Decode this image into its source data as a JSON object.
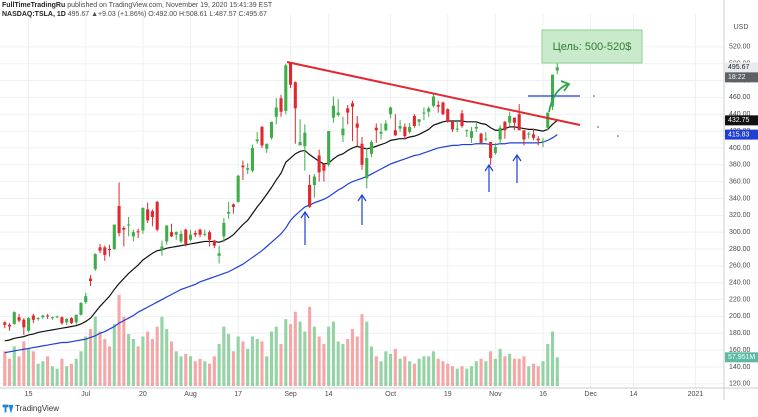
{
  "chart_data": {
    "type": "candlestick",
    "author": "FullTimeTradingRu",
    "published": "published on TradingView.com, November 19, 2020 15:41:39 EST",
    "symbol": "NASDAQ:TSLA, 1D",
    "quote": "495.67 ▲+9.03 (+1.86%) O:492.00 H:508.61 L:487.57 C:495.67",
    "annotation": "Цель: 500-520$",
    "currency": "USD",
    "countdown": "18:22",
    "footer": "TradingView",
    "up_color": "#3fae4a",
    "down_color": "#e0282e",
    "volume_up_color": "#93d3a4",
    "volume_down_color": "#f5a6a6",
    "grid": true,
    "xlim": [
      -1,
      151
    ],
    "xticks": [
      {
        "value": 5,
        "label": "15"
      },
      {
        "value": 17,
        "label": "Jul"
      },
      {
        "value": 29,
        "label": "20"
      },
      {
        "value": 39,
        "label": "Aug"
      },
      {
        "value": 49,
        "label": "17"
      },
      {
        "value": 60,
        "label": "Sep"
      },
      {
        "value": 68,
        "label": "14"
      },
      {
        "value": 81,
        "label": "Oct"
      },
      {
        "value": 93,
        "label": "19"
      },
      {
        "value": 103,
        "label": "Nov"
      },
      {
        "value": 113,
        "label": "16"
      },
      {
        "value": 123,
        "label": "Dec"
      },
      {
        "value": 132,
        "label": "14"
      },
      {
        "value": 145,
        "label": "2021"
      }
    ],
    "ylim": [
      115,
      559
    ],
    "yticks": [
      {
        "value": 120,
        "label": "120.00"
      },
      {
        "value": 140,
        "label": "140.00"
      },
      {
        "value": 160,
        "label": "160.00"
      },
      {
        "value": 180,
        "label": "180.00"
      },
      {
        "value": 200,
        "label": "200.00"
      },
      {
        "value": 220,
        "label": "220.00"
      },
      {
        "value": 240,
        "label": "240.00"
      },
      {
        "value": 260,
        "label": "260.00"
      },
      {
        "value": 280,
        "label": "280.00"
      },
      {
        "value": 300,
        "label": "300.00"
      },
      {
        "value": 320,
        "label": "320.00"
      },
      {
        "value": 340,
        "label": "340.00"
      },
      {
        "value": 360,
        "label": "360.00"
      },
      {
        "value": 380,
        "label": "380.00"
      },
      {
        "value": 400,
        "label": "400.00"
      },
      {
        "value": 420,
        "label": "420.00"
      },
      {
        "value": 440,
        "label": "440.00"
      },
      {
        "value": 460,
        "label": "460.00"
      },
      {
        "value": 480,
        "label": "480.00"
      },
      {
        "value": 500,
        "label": "500.00"
      },
      {
        "value": 520,
        "label": "520.00"
      }
    ],
    "ohlc": [
      [
        193,
        194,
        186,
        190
      ],
      [
        190,
        192,
        183,
        188
      ],
      [
        191,
        206,
        190,
        205
      ],
      [
        199,
        203,
        193,
        195
      ],
      [
        196,
        198,
        178,
        187
      ],
      [
        183,
        199,
        181,
        198
      ],
      [
        201,
        203,
        192,
        196
      ],
      [
        197,
        199,
        195,
        198
      ],
      [
        199,
        202,
        197,
        201
      ],
      [
        201,
        203,
        197,
        200
      ],
      [
        199,
        200,
        196,
        199
      ],
      [
        199,
        201,
        198,
        200
      ],
      [
        199,
        200,
        190,
        192
      ],
      [
        193,
        198,
        190,
        197
      ],
      [
        198,
        199,
        191,
        192
      ],
      [
        193,
        202,
        190,
        202
      ],
      [
        202,
        217,
        201,
        216
      ],
      [
        217,
        228,
        215,
        224
      ],
      [
        245,
        249,
        236,
        242
      ],
      [
        256,
        275,
        254,
        274
      ],
      [
        282,
        286,
        275,
        278
      ],
      [
        282,
        284,
        266,
        273
      ],
      [
        280,
        285,
        271,
        279
      ],
      [
        280,
        309,
        279,
        309
      ],
      [
        331,
        359,
        295,
        299
      ],
      [
        305,
        307,
        283,
        303
      ],
      [
        309,
        318,
        295,
        309
      ],
      [
        295,
        303,
        289,
        300
      ],
      [
        301,
        304,
        293,
        300
      ],
      [
        302,
        329,
        298,
        329
      ],
      [
        327,
        335,
        311,
        314
      ],
      [
        325,
        327,
        307,
        318
      ],
      [
        336,
        337,
        301,
        303
      ],
      [
        279,
        290,
        272,
        283
      ],
      [
        289,
        308,
        285,
        308
      ],
      [
        300,
        310,
        294,
        295
      ],
      [
        297,
        301,
        291,
        300
      ],
      [
        289,
        302,
        287,
        298
      ],
      [
        303,
        304,
        283,
        286
      ],
      [
        291,
        303,
        289,
        297
      ],
      [
        299,
        302,
        294,
        297
      ],
      [
        303,
        304,
        294,
        297
      ],
      [
        298,
        303,
        295,
        298
      ],
      [
        300,
        302,
        283,
        291
      ],
      [
        290,
        291,
        281,
        284
      ],
      [
        272,
        284,
        263,
        275
      ],
      [
        295,
        317,
        288,
        311
      ],
      [
        322,
        336,
        316,
        324
      ],
      [
        333,
        334,
        322,
        330
      ],
      [
        336,
        368,
        335,
        367
      ],
      [
        379,
        385,
        362,
        377
      ],
      [
        374,
        382,
        369,
        376
      ],
      [
        373,
        404,
        371,
        400
      ],
      [
        408,
        419,
        405,
        410
      ],
      [
        425,
        426,
        400,
        403
      ],
      [
        399,
        405,
        394,
        405
      ],
      [
        412,
        431,
        410,
        431
      ],
      [
        437,
        459,
        428,
        448
      ],
      [
        459,
        463,
        437,
        443
      ],
      [
        444,
        500,
        440,
        498
      ],
      [
        502,
        502,
        471,
        475
      ],
      [
        478,
        479,
        405,
        447
      ],
      [
        403,
        434,
        403,
        407
      ],
      [
        402,
        428,
        373,
        418
      ],
      [
        356,
        368,
        329,
        330
      ],
      [
        356,
        369,
        341,
        366
      ],
      [
        391,
        398,
        360,
        371
      ],
      [
        381,
        382,
        360,
        373
      ],
      [
        380,
        420,
        378,
        420
      ],
      [
        436,
        461,
        430,
        450
      ],
      [
        439,
        458,
        437,
        442
      ],
      [
        415,
        437,
        407,
        423
      ],
      [
        447,
        451,
        428,
        442
      ],
      [
        453,
        456,
        408,
        449
      ],
      [
        429,
        438,
        402,
        424
      ],
      [
        405,
        413,
        374,
        380
      ],
      [
        364,
        400,
        352,
        388
      ],
      [
        393,
        409,
        389,
        407
      ],
      [
        424,
        429,
        406,
        421
      ],
      [
        417,
        429,
        410,
        419
      ],
      [
        421,
        433,
        420,
        429
      ],
      [
        440,
        449,
        435,
        448
      ],
      [
        421,
        440,
        414,
        415
      ],
      [
        423,
        433,
        419,
        426
      ],
      [
        425,
        429,
        410,
        414
      ],
      [
        419,
        430,
        417,
        425
      ],
      [
        438,
        440,
        424,
        426
      ],
      [
        431,
        434,
        426,
        434
      ],
      [
        442,
        448,
        433,
        442
      ],
      [
        443,
        449,
        437,
        447
      ],
      [
        450,
        465,
        448,
        461
      ],
      [
        451,
        456,
        442,
        449
      ],
      [
        454,
        455,
        439,
        440
      ],
      [
        446,
        447,
        430,
        431
      ],
      [
        431,
        432,
        419,
        422
      ],
      [
        422,
        432,
        419,
        423
      ],
      [
        441,
        445,
        424,
        426
      ],
      [
        421,
        422,
        413,
        421
      ],
      [
        412,
        425,
        406,
        420
      ],
      [
        423,
        431,
        419,
        425
      ],
      [
        417,
        418,
        406,
        406
      ],
      [
        410,
        419,
        408,
        411
      ],
      [
        407,
        407,
        380,
        388
      ],
      [
        394,
        406,
        392,
        401
      ],
      [
        410,
        427,
        405,
        424
      ],
      [
        431,
        432,
        411,
        421
      ],
      [
        430,
        443,
        426,
        438
      ],
      [
        436,
        436,
        421,
        430
      ],
      [
        440,
        452,
        421,
        421
      ],
      [
        421,
        421,
        403,
        410
      ],
      [
        417,
        419,
        411,
        417
      ],
      [
        416,
        423,
        409,
        412
      ],
      [
        411,
        414,
        403,
        409
      ],
      [
        408,
        412,
        401,
        408
      ],
      [
        424,
        442,
        421,
        442
      ],
      [
        449,
        487,
        445,
        487
      ],
      [
        492,
        508.61,
        487.57,
        495.67
      ]
    ],
    "volume_ylim": [
      0,
      200
    ],
    "volume": [
      70,
      55,
      80,
      60,
      90,
      75,
      70,
      45,
      50,
      60,
      40,
      35,
      55,
      40,
      45,
      55,
      70,
      100,
      115,
      140,
      110,
      95,
      80,
      125,
      184,
      140,
      105,
      95,
      80,
      100,
      110,
      95,
      120,
      140,
      115,
      90,
      70,
      60,
      65,
      60,
      50,
      55,
      50,
      45,
      60,
      85,
      120,
      105,
      70,
      100,
      90,
      75,
      100,
      95,
      90,
      60,
      110,
      120,
      85,
      135,
      125,
      150,
      130,
      110,
      160,
      120,
      100,
      85,
      120,
      130,
      90,
      85,
      95,
      115,
      100,
      145,
      130,
      80,
      60,
      50,
      70,
      65,
      75,
      55,
      60,
      50,
      45,
      55,
      60,
      60,
      70,
      55,
      50,
      45,
      40,
      35,
      40,
      35,
      40,
      50,
      55,
      50,
      70,
      55,
      75,
      60,
      65,
      55,
      55,
      60,
      40,
      45,
      40,
      50,
      85,
      110,
      57.951
    ],
    "volume_last_label": "57.951M",
    "lines": [
      {
        "color": "#111111",
        "values": [
          171,
          172,
          174,
          175,
          176,
          178,
          179,
          181,
          182,
          183,
          184,
          185,
          186,
          187,
          188,
          189,
          191,
          194,
          198,
          205,
          212,
          218,
          224,
          232,
          239,
          245,
          251,
          256,
          261,
          267,
          271,
          275,
          278,
          279,
          281,
          282,
          283,
          284,
          285,
          286,
          287,
          288,
          289,
          289,
          289,
          288,
          290,
          293,
          297,
          303,
          309,
          314,
          322,
          330,
          337,
          345,
          353,
          362,
          370,
          383,
          388,
          393,
          396,
          397,
          392,
          388,
          384,
          381,
          382,
          387,
          391,
          393,
          397,
          400,
          402,
          400,
          399,
          400,
          402,
          404,
          406,
          409,
          410,
          411,
          411,
          413,
          414,
          416,
          419,
          422,
          427,
          429,
          431,
          432,
          432,
          432,
          432,
          431,
          431,
          431,
          429,
          428,
          424,
          421,
          421,
          423,
          425,
          425,
          424,
          423,
          422,
          422,
          421,
          420,
          422,
          428,
          432.75
        ]
      },
      {
        "color": "#1f3fd6",
        "values": [
          157,
          158,
          159,
          160,
          161,
          162,
          163,
          164,
          165,
          166,
          167,
          168,
          169,
          169,
          170,
          171,
          172,
          173,
          175,
          177,
          180,
          182,
          185,
          188,
          192,
          195,
          198,
          201,
          205,
          208,
          211,
          214,
          217,
          220,
          223,
          226,
          229,
          232,
          234,
          236,
          238,
          241,
          243,
          245,
          247,
          249,
          251,
          253,
          256,
          259,
          262,
          266,
          270,
          274,
          278,
          283,
          288,
          293,
          298,
          305,
          314,
          320,
          325,
          330,
          332,
          335,
          337,
          339,
          342,
          346,
          350,
          353,
          357,
          360,
          362,
          364,
          366,
          369,
          372,
          375,
          378,
          381,
          383,
          385,
          387,
          389,
          391,
          392,
          394,
          396,
          398,
          400,
          401,
          402,
          403,
          403,
          404,
          404,
          404,
          405,
          405,
          405,
          404,
          404,
          405,
          405,
          406,
          406,
          406,
          406,
          406,
          406,
          406,
          407,
          409,
          412,
          415.83
        ]
      }
    ]
  }
}
